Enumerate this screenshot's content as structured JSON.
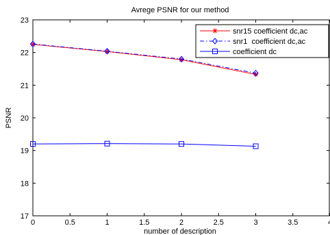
{
  "chart_data": {
    "type": "line",
    "title": "Avrege PSNR for our method",
    "xlabel": "number of description",
    "ylabel": "PSNR",
    "xlim": [
      0,
      4
    ],
    "ylim": [
      17,
      23
    ],
    "xticks": [
      "0",
      "0.5",
      "1",
      "1.5",
      "2",
      "2.5",
      "3",
      "3.5",
      "4"
    ],
    "yticks": [
      "17",
      "18",
      "19",
      "20",
      "21",
      "22",
      "23"
    ],
    "grid": false,
    "legend_position": "top-right",
    "x": [
      0,
      1,
      2,
      3
    ],
    "series": [
      {
        "name": "snr15 coefficient dc,ac",
        "values": [
          22.25,
          22.03,
          21.78,
          21.33
        ],
        "color": "#ff0000",
        "marker": "star",
        "linestyle": "solid"
      },
      {
        "name": "snr1  coefficient dc,ac",
        "values": [
          22.26,
          22.04,
          21.8,
          21.37
        ],
        "color": "#0000ff",
        "marker": "diamond",
        "linestyle": "dashdot"
      },
      {
        "name": "coefficient dc",
        "values": [
          19.2,
          19.21,
          19.2,
          19.13
        ],
        "color": "#0000ff",
        "marker": "square",
        "linestyle": "solid"
      }
    ]
  }
}
